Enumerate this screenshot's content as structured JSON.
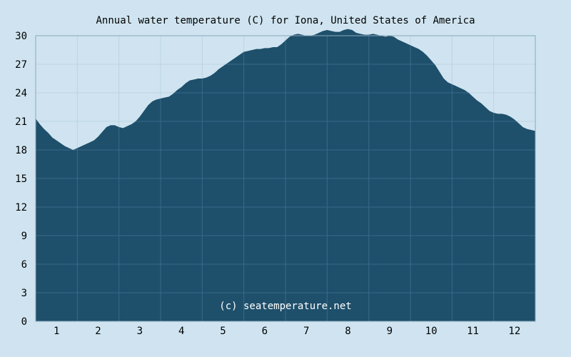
{
  "chart_data": {
    "type": "area",
    "title": "Annual water temperature (C) for Iona, United States of America",
    "xlabel": "",
    "ylabel": "",
    "ylim": [
      0,
      30
    ],
    "xlim": [
      0.5,
      12.5
    ],
    "yticks": [
      0,
      3,
      6,
      9,
      12,
      15,
      18,
      21,
      24,
      27,
      30
    ],
    "xticks": [
      1,
      2,
      3,
      4,
      5,
      6,
      7,
      8,
      9,
      10,
      11,
      12
    ],
    "grid": true,
    "watermark": "(c) seatemperature.net",
    "colors": {
      "background": "#cfe4f0",
      "fill": "#1e4f6b",
      "grid_below": "#bcd3e2",
      "grid_above": "#3d6e8c"
    },
    "x": [
      0.5,
      0.6,
      0.7,
      0.8,
      0.9,
      1.0,
      1.1,
      1.2,
      1.3,
      1.4,
      1.5,
      1.7,
      1.8,
      1.9,
      2.0,
      2.1,
      2.2,
      2.3,
      2.4,
      2.5,
      2.6,
      2.7,
      2.8,
      2.9,
      3.0,
      3.1,
      3.2,
      3.3,
      3.4,
      3.5,
      3.6,
      3.7,
      3.8,
      3.9,
      4.0,
      4.1,
      4.2,
      4.3,
      4.4,
      4.5,
      4.6,
      4.7,
      4.8,
      4.9,
      5.0,
      5.1,
      5.2,
      5.3,
      5.4,
      5.5,
      5.6,
      5.7,
      5.8,
      5.9,
      6.0,
      6.1,
      6.2,
      6.3,
      6.4,
      6.5,
      6.6,
      6.7,
      6.8,
      6.9,
      7.0,
      7.1,
      7.2,
      7.3,
      7.4,
      7.5,
      7.6,
      7.7,
      7.8,
      7.9,
      8.0,
      8.1,
      8.2,
      8.3,
      8.4,
      8.5,
      8.6,
      8.7,
      8.8,
      8.9,
      9.0,
      9.1,
      9.2,
      9.3,
      9.4,
      9.5,
      9.6,
      9.7,
      9.8,
      9.9,
      10.0,
      10.1,
      10.2,
      10.3,
      10.4,
      10.5,
      10.6,
      10.7,
      10.8,
      10.9,
      11.0,
      11.1,
      11.2,
      11.3,
      11.4,
      11.5,
      11.6,
      11.7,
      11.8,
      11.9,
      12.0,
      12.1,
      12.2,
      12.3,
      12.4,
      12.5
    ],
    "series": [
      {
        "values": [
          21.3,
          20.7,
          20.2,
          19.8,
          19.3,
          19.0,
          18.7,
          18.4,
          18.2,
          18.0,
          18.2,
          18.6,
          18.8,
          19.0,
          19.4,
          19.9,
          20.4,
          20.6,
          20.6,
          20.4,
          20.3,
          20.5,
          20.7,
          21.0,
          21.5,
          22.1,
          22.7,
          23.1,
          23.3,
          23.4,
          23.5,
          23.6,
          23.9,
          24.3,
          24.6,
          25.0,
          25.3,
          25.4,
          25.5,
          25.5,
          25.6,
          25.8,
          26.1,
          26.5,
          26.8,
          27.1,
          27.4,
          27.7,
          28.0,
          28.3,
          28.4,
          28.5,
          28.6,
          28.6,
          28.7,
          28.7,
          28.8,
          28.8,
          29.1,
          29.5,
          29.9,
          30.1,
          30.2,
          30.1,
          30.0,
          30.0,
          30.1,
          30.3,
          30.5,
          30.6,
          30.5,
          30.4,
          30.4,
          30.6,
          30.7,
          30.6,
          30.3,
          30.2,
          30.1,
          30.1,
          30.2,
          30.1,
          30.0,
          29.9,
          30.0,
          29.9,
          29.6,
          29.4,
          29.2,
          29.0,
          28.8,
          28.6,
          28.3,
          27.9,
          27.4,
          26.9,
          26.2,
          25.5,
          25.1,
          24.9,
          24.7,
          24.5,
          24.3,
          24.0,
          23.6,
          23.2,
          22.9,
          22.5,
          22.1,
          21.9,
          21.8,
          21.8,
          21.7,
          21.5,
          21.2,
          20.8,
          20.4,
          20.2,
          20.1,
          20.0
        ]
      }
    ]
  }
}
